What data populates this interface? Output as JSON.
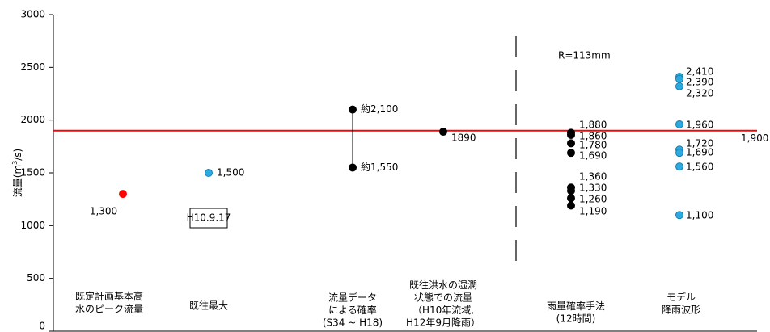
{
  "chart_data": {
    "type": "scatter",
    "y_label": [
      "流量(m",
      "3",
      "/s)"
    ],
    "ylim": [
      0,
      3000
    ],
    "yticks": [
      0,
      500,
      1000,
      1500,
      2000,
      2500,
      3000
    ],
    "reference_line": {
      "value": 1900,
      "label": "1,900",
      "color": "#ff0000"
    },
    "annotation": "R=113mm",
    "categories": [
      {
        "label": [
          "既定計画基本高",
          "水のピーク流量"
        ],
        "color": "#ff0000",
        "values": [
          1300
        ],
        "value_labels": [
          "1,300"
        ]
      },
      {
        "label": [
          "既往最大"
        ],
        "color": "#29abe2",
        "values": [
          1500
        ],
        "value_labels": [
          "1,500"
        ],
        "note": "H10.9.17"
      },
      {
        "label": [
          "流量データ",
          "による確率",
          "(S34 ~ H18)"
        ],
        "color": "#000000",
        "values": [
          2100,
          1550
        ],
        "value_labels": [
          "約2,100",
          "約1,550"
        ],
        "range": true
      },
      {
        "label": [
          "既往洪水の湿潤",
          "状態での流量",
          "（H10年流域,",
          "H12年9月降雨）"
        ],
        "color": "#000000",
        "values": [
          1890
        ],
        "value_labels": [
          "1890"
        ]
      },
      {
        "label": [
          "雨量確率手法",
          "(12時間)"
        ],
        "color": "#000000",
        "values": [
          1880,
          1860,
          1780,
          1690,
          1360,
          1330,
          1260,
          1190
        ],
        "value_labels": [
          "1,880",
          "1,860",
          "1,780",
          "1,690",
          "1,360",
          "1,330",
          "1,260",
          "1,190"
        ]
      },
      {
        "label": [
          "モデル",
          "降雨波形"
        ],
        "color": "#29abe2",
        "values": [
          2410,
          2390,
          2320,
          1960,
          1720,
          1690,
          1560,
          1100
        ],
        "value_labels": [
          "2,410",
          "2,390",
          "2,320",
          "1,960",
          "1,720",
          "1,690",
          "1,560",
          "1,100"
        ]
      }
    ]
  }
}
